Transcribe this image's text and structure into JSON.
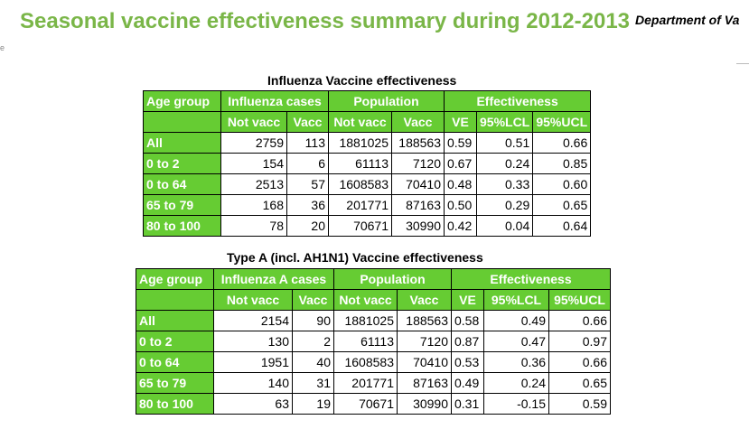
{
  "header": {
    "title": "Seasonal vaccine effectiveness summary during 2012-2013",
    "department": "Department of Va",
    "edge_mark": "e"
  },
  "tables": [
    {
      "caption": "Influenza Vaccine effectiveness",
      "headers": {
        "age_group": "Age group",
        "cases": "Influenza cases",
        "population": "Population",
        "effectiveness": "Effectiveness",
        "not_vacc": "Not vacc",
        "vacc": "Vacc",
        "pop_not_vacc": "Not vacc",
        "pop_vacc": "Vacc",
        "ve": "VE",
        "lcl": "95%LCL",
        "ucl": "95%UCL"
      },
      "rows": [
        {
          "age": "All",
          "not_vacc": "2759",
          "vacc": "113",
          "pop_not_vacc": "1881025",
          "pop_vacc": "188563",
          "ve": "0.59",
          "lcl": "0.51",
          "ucl": "0.66"
        },
        {
          "age": "0 to 2",
          "not_vacc": "154",
          "vacc": "6",
          "pop_not_vacc": "61113",
          "pop_vacc": "7120",
          "ve": "0.67",
          "lcl": "0.24",
          "ucl": "0.85"
        },
        {
          "age": "0 to 64",
          "not_vacc": "2513",
          "vacc": "57",
          "pop_not_vacc": "1608583",
          "pop_vacc": "70410",
          "ve": "0.48",
          "lcl": "0.33",
          "ucl": "0.60"
        },
        {
          "age": "65 to 79",
          "not_vacc": "168",
          "vacc": "36",
          "pop_not_vacc": "201771",
          "pop_vacc": "87163",
          "ve": "0.50",
          "lcl": "0.29",
          "ucl": "0.65"
        },
        {
          "age": "80 to 100",
          "not_vacc": "78",
          "vacc": "20",
          "pop_not_vacc": "70671",
          "pop_vacc": "30990",
          "ve": "0.42",
          "lcl": "0.04",
          "ucl": "0.64"
        }
      ]
    },
    {
      "caption": "Type A (incl. AH1N1) Vaccine effectiveness",
      "headers": {
        "age_group": "Age group",
        "cases": "Influenza A cases",
        "population": "Population",
        "effectiveness": "Effectiveness",
        "not_vacc": "Not vacc",
        "vacc": "Vacc",
        "pop_not_vacc": "Not vacc",
        "pop_vacc": "Vacc",
        "ve": "VE",
        "lcl": "95%LCL",
        "ucl": "95%UCL"
      },
      "rows": [
        {
          "age": "All",
          "not_vacc": "2154",
          "vacc": "90",
          "pop_not_vacc": "1881025",
          "pop_vacc": "188563",
          "ve": "0.58",
          "lcl": "0.49",
          "ucl": "0.66"
        },
        {
          "age": "0 to 2",
          "not_vacc": "130",
          "vacc": "2",
          "pop_not_vacc": "61113",
          "pop_vacc": "7120",
          "ve": "0.87",
          "lcl": "0.47",
          "ucl": "0.97"
        },
        {
          "age": "0 to 64",
          "not_vacc": "1951",
          "vacc": "40",
          "pop_not_vacc": "1608583",
          "pop_vacc": "70410",
          "ve": "0.53",
          "lcl": "0.36",
          "ucl": "0.66"
        },
        {
          "age": "65 to 79",
          "not_vacc": "140",
          "vacc": "31",
          "pop_not_vacc": "201771",
          "pop_vacc": "87163",
          "ve": "0.49",
          "lcl": "0.24",
          "ucl": "0.65"
        },
        {
          "age": "80 to 100",
          "not_vacc": "63",
          "vacc": "19",
          "pop_not_vacc": "70671",
          "pop_vacc": "30990",
          "ve": "0.31",
          "lcl": "-0.15",
          "ucl": "0.59"
        }
      ]
    }
  ],
  "colors": {
    "title_green": "#7ab648",
    "header_green": "#66cc33"
  }
}
